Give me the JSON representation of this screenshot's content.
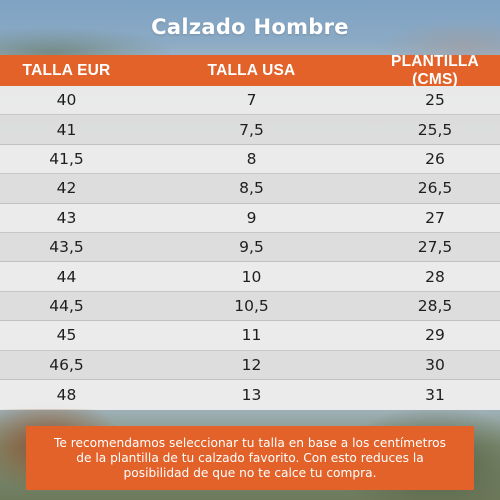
{
  "title": "Calzado Hombre",
  "colors": {
    "accent": "#e2622a",
    "row_light": "#ebebeb",
    "row_dark": "#dcdcdc",
    "text": "#1e1e1e"
  },
  "table": {
    "headers": [
      "TALLA EUR",
      "TALLA USA",
      "PLANTILLA (CMS)"
    ],
    "rows": [
      [
        "40",
        "7",
        "25"
      ],
      [
        "41",
        "7,5",
        "25,5"
      ],
      [
        "41,5",
        "8",
        "26"
      ],
      [
        "42",
        "8,5",
        "26,5"
      ],
      [
        "43",
        "9",
        "27"
      ],
      [
        "43,5",
        "9,5",
        "27,5"
      ],
      [
        "44",
        "10",
        "28"
      ],
      [
        "44,5",
        "10,5",
        "28,5"
      ],
      [
        "45",
        "11",
        "29"
      ],
      [
        "46,5",
        "12",
        "30"
      ],
      [
        "48",
        "13",
        "31"
      ]
    ]
  },
  "note": {
    "line1": "Te recomendamos seleccionar tu talla en base a los centímetros",
    "line2": "de la plantilla de tu calzado favorito. Con esto reduces la",
    "line3": "posibilidad de que no te calce tu compra."
  }
}
